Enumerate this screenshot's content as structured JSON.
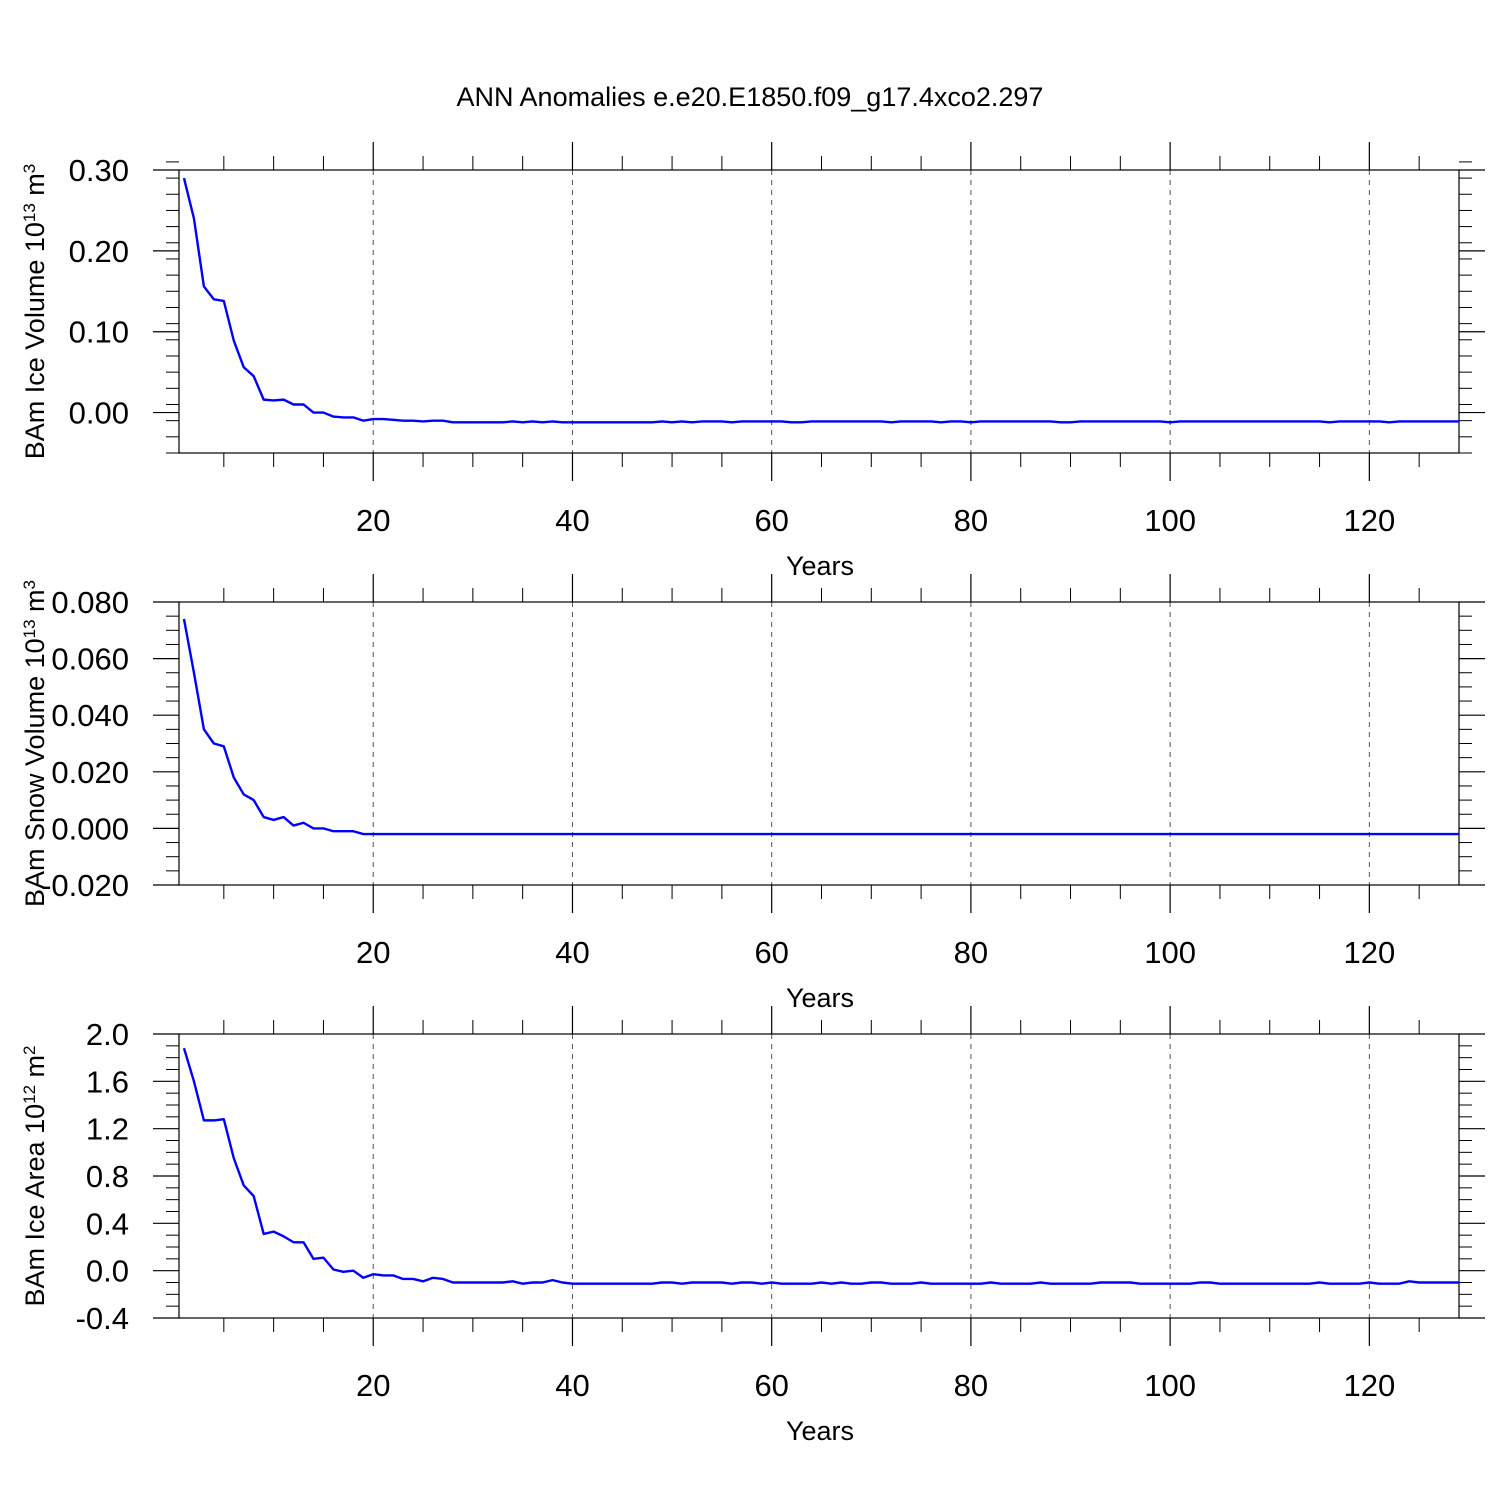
{
  "title": "ANN Anomalies e.e20.E1850.f09_g17.4xco2.297",
  "line_color": "#0000ff",
  "grid_color": "#555555",
  "chart_data": [
    {
      "type": "line",
      "ylabel": "BAm Ice Volume 10",
      "ylabel_exp": "13",
      "ylabel_unit": " m",
      "ylabel_unit_exp": "3",
      "xlabel": "Years",
      "xlim": [
        0.5,
        129
      ],
      "ylim": [
        -0.05,
        0.3
      ],
      "xticks": [
        20,
        40,
        60,
        80,
        100,
        120
      ],
      "xtick_labels": [
        "20",
        "40",
        "60",
        "80",
        "100",
        "120"
      ],
      "yticks": [
        0.0,
        0.1,
        0.2,
        0.3
      ],
      "ytick_labels": [
        "0.00",
        "0.10",
        "0.20",
        "0.30"
      ],
      "yminor_step": 0.02,
      "grid_x": true,
      "series": [
        {
          "x": [
            1,
            2,
            3,
            4,
            5,
            6,
            7,
            8,
            9,
            10,
            11,
            12,
            13,
            14,
            15,
            16,
            17,
            18,
            19,
            20,
            21,
            22,
            23,
            24,
            25,
            26,
            27,
            28,
            29,
            30,
            31,
            32,
            33,
            34,
            35,
            36,
            37,
            38,
            39,
            40,
            41,
            42,
            43,
            44,
            45,
            46,
            47,
            48,
            49,
            50,
            51,
            52,
            53,
            54,
            55,
            56,
            57,
            58,
            59,
            60,
            61,
            62,
            63,
            64,
            65,
            66,
            67,
            68,
            69,
            70,
            71,
            72,
            73,
            74,
            75,
            76,
            77,
            78,
            79,
            80,
            81,
            82,
            83,
            84,
            85,
            86,
            87,
            88,
            89,
            90,
            91,
            92,
            93,
            94,
            95,
            96,
            97,
            98,
            99,
            100,
            101,
            102,
            103,
            104,
            105,
            106,
            107,
            108,
            109,
            110,
            111,
            112,
            113,
            114,
            115,
            116,
            117,
            118,
            119,
            120,
            121,
            122,
            123,
            124,
            125,
            126,
            127,
            128,
            129
          ],
          "values": [
            0.29,
            0.24,
            0.156,
            0.14,
            0.138,
            0.089,
            0.056,
            0.045,
            0.016,
            0.015,
            0.016,
            0.01,
            0.01,
            0.0,
            0.0,
            -0.005,
            -0.006,
            -0.006,
            -0.01,
            -0.008,
            -0.008,
            -0.009,
            -0.01,
            -0.01,
            -0.011,
            -0.01,
            -0.01,
            -0.012,
            -0.012,
            -0.012,
            -0.012,
            -0.012,
            -0.012,
            -0.011,
            -0.012,
            -0.011,
            -0.012,
            -0.011,
            -0.012,
            -0.012,
            -0.012,
            -0.012,
            -0.012,
            -0.012,
            -0.012,
            -0.012,
            -0.012,
            -0.012,
            -0.011,
            -0.012,
            -0.011,
            -0.012,
            -0.011,
            -0.011,
            -0.011,
            -0.012,
            -0.011,
            -0.011,
            -0.011,
            -0.011,
            -0.011,
            -0.012,
            -0.012,
            -0.011,
            -0.011,
            -0.011,
            -0.011,
            -0.011,
            -0.011,
            -0.011,
            -0.011,
            -0.012,
            -0.011,
            -0.011,
            -0.011,
            -0.011,
            -0.012,
            -0.011,
            -0.011,
            -0.012,
            -0.011,
            -0.011,
            -0.011,
            -0.011,
            -0.011,
            -0.011,
            -0.011,
            -0.011,
            -0.012,
            -0.012,
            -0.011,
            -0.011,
            -0.011,
            -0.011,
            -0.011,
            -0.011,
            -0.011,
            -0.011,
            -0.011,
            -0.012,
            -0.011,
            -0.011,
            -0.011,
            -0.011,
            -0.011,
            -0.011,
            -0.011,
            -0.011,
            -0.011,
            -0.011,
            -0.011,
            -0.011,
            -0.011,
            -0.011,
            -0.011,
            -0.012,
            -0.011,
            -0.011,
            -0.011,
            -0.011,
            -0.011,
            -0.012,
            -0.011,
            -0.011,
            -0.011,
            -0.011,
            -0.011,
            -0.011,
            -0.011
          ]
        }
      ]
    },
    {
      "type": "line",
      "ylabel": "BAm Snow Volume 10",
      "ylabel_exp": "13",
      "ylabel_unit": " m",
      "ylabel_unit_exp": "3",
      "xlabel": "Years",
      "xlim": [
        0.5,
        129
      ],
      "ylim": [
        -0.02,
        0.08
      ],
      "xticks": [
        20,
        40,
        60,
        80,
        100,
        120
      ],
      "xtick_labels": [
        "20",
        "40",
        "60",
        "80",
        "100",
        "120"
      ],
      "yticks": [
        -0.02,
        0.0,
        0.02,
        0.04,
        0.06,
        0.08
      ],
      "ytick_labels": [
        "-0.020",
        "0.000",
        "0.020",
        "0.040",
        "0.060",
        "0.080"
      ],
      "yminor_step": 0.005,
      "grid_x": true,
      "series": [
        {
          "x": [
            1,
            2,
            3,
            4,
            5,
            6,
            7,
            8,
            9,
            10,
            11,
            12,
            13,
            14,
            15,
            16,
            17,
            18,
            19,
            20,
            21,
            22,
            23,
            24,
            25,
            26,
            27,
            28,
            29,
            30,
            31,
            32,
            33,
            34,
            35,
            36,
            37,
            38,
            39,
            40,
            41,
            42,
            43,
            44,
            45,
            46,
            47,
            48,
            49,
            50,
            51,
            52,
            53,
            54,
            55,
            56,
            57,
            58,
            59,
            60,
            61,
            62,
            63,
            64,
            65,
            66,
            67,
            68,
            69,
            70,
            71,
            72,
            73,
            74,
            75,
            76,
            77,
            78,
            79,
            80,
            81,
            82,
            83,
            84,
            85,
            86,
            87,
            88,
            89,
            90,
            91,
            92,
            93,
            94,
            95,
            96,
            97,
            98,
            99,
            100,
            101,
            102,
            103,
            104,
            105,
            106,
            107,
            108,
            109,
            110,
            111,
            112,
            113,
            114,
            115,
            116,
            117,
            118,
            119,
            120,
            121,
            122,
            123,
            124,
            125,
            126,
            127,
            128,
            129
          ],
          "values": [
            0.074,
            0.055,
            0.035,
            0.03,
            0.029,
            0.018,
            0.012,
            0.01,
            0.004,
            0.003,
            0.004,
            0.001,
            0.002,
            0.0,
            0.0,
            -0.001,
            -0.001,
            -0.001,
            -0.002,
            -0.002,
            -0.002,
            -0.002,
            -0.002,
            -0.002,
            -0.002,
            -0.002,
            -0.002,
            -0.002,
            -0.002,
            -0.002,
            -0.002,
            -0.002,
            -0.002,
            -0.002,
            -0.002,
            -0.002,
            -0.002,
            -0.002,
            -0.002,
            -0.002,
            -0.002,
            -0.002,
            -0.002,
            -0.002,
            -0.002,
            -0.002,
            -0.002,
            -0.002,
            -0.002,
            -0.002,
            -0.002,
            -0.002,
            -0.002,
            -0.002,
            -0.002,
            -0.002,
            -0.002,
            -0.002,
            -0.002,
            -0.002,
            -0.002,
            -0.002,
            -0.002,
            -0.002,
            -0.002,
            -0.002,
            -0.002,
            -0.002,
            -0.002,
            -0.002,
            -0.002,
            -0.002,
            -0.002,
            -0.002,
            -0.002,
            -0.002,
            -0.002,
            -0.002,
            -0.002,
            -0.002,
            -0.002,
            -0.002,
            -0.002,
            -0.002,
            -0.002,
            -0.002,
            -0.002,
            -0.002,
            -0.002,
            -0.002,
            -0.002,
            -0.002,
            -0.002,
            -0.002,
            -0.002,
            -0.002,
            -0.002,
            -0.002,
            -0.002,
            -0.002,
            -0.002,
            -0.002,
            -0.002,
            -0.002,
            -0.002,
            -0.002,
            -0.002,
            -0.002,
            -0.002,
            -0.002,
            -0.002,
            -0.002,
            -0.002,
            -0.002,
            -0.002,
            -0.002,
            -0.002,
            -0.002,
            -0.002,
            -0.002,
            -0.002,
            -0.002,
            -0.002,
            -0.002,
            -0.002,
            -0.002,
            -0.002,
            -0.002,
            -0.002
          ]
        }
      ]
    },
    {
      "type": "line",
      "ylabel": "BAm Ice Area 10",
      "ylabel_exp": "12",
      "ylabel_unit": " m",
      "ylabel_unit_exp": "2",
      "xlabel": "Years",
      "xlim": [
        0.5,
        129
      ],
      "ylim": [
        -0.4,
        2.0
      ],
      "xticks": [
        20,
        40,
        60,
        80,
        100,
        120
      ],
      "xtick_labels": [
        "20",
        "40",
        "60",
        "80",
        "100",
        "120"
      ],
      "yticks": [
        -0.4,
        0.0,
        0.4,
        0.8,
        1.2,
        1.6,
        2.0
      ],
      "ytick_labels": [
        "-0.4",
        "0.0",
        "0.4",
        "0.8",
        "1.2",
        "1.6",
        "2.0"
      ],
      "yminor_step": 0.1,
      "grid_x": true,
      "series": [
        {
          "x": [
            1,
            2,
            3,
            4,
            5,
            6,
            7,
            8,
            9,
            10,
            11,
            12,
            13,
            14,
            15,
            16,
            17,
            18,
            19,
            20,
            21,
            22,
            23,
            24,
            25,
            26,
            27,
            28,
            29,
            30,
            31,
            32,
            33,
            34,
            35,
            36,
            37,
            38,
            39,
            40,
            41,
            42,
            43,
            44,
            45,
            46,
            47,
            48,
            49,
            50,
            51,
            52,
            53,
            54,
            55,
            56,
            57,
            58,
            59,
            60,
            61,
            62,
            63,
            64,
            65,
            66,
            67,
            68,
            69,
            70,
            71,
            72,
            73,
            74,
            75,
            76,
            77,
            78,
            79,
            80,
            81,
            82,
            83,
            84,
            85,
            86,
            87,
            88,
            89,
            90,
            91,
            92,
            93,
            94,
            95,
            96,
            97,
            98,
            99,
            100,
            101,
            102,
            103,
            104,
            105,
            106,
            107,
            108,
            109,
            110,
            111,
            112,
            113,
            114,
            115,
            116,
            117,
            118,
            119,
            120,
            121,
            122,
            123,
            124,
            125,
            126,
            127,
            128,
            129
          ],
          "values": [
            1.88,
            1.6,
            1.27,
            1.27,
            1.28,
            0.95,
            0.72,
            0.63,
            0.31,
            0.33,
            0.29,
            0.24,
            0.24,
            0.1,
            0.11,
            0.01,
            -0.01,
            0.0,
            -0.06,
            -0.03,
            -0.04,
            -0.04,
            -0.07,
            -0.07,
            -0.09,
            -0.06,
            -0.07,
            -0.1,
            -0.1,
            -0.1,
            -0.1,
            -0.1,
            -0.1,
            -0.09,
            -0.11,
            -0.1,
            -0.1,
            -0.08,
            -0.1,
            -0.11,
            -0.11,
            -0.11,
            -0.11,
            -0.11,
            -0.11,
            -0.11,
            -0.11,
            -0.11,
            -0.1,
            -0.1,
            -0.11,
            -0.1,
            -0.1,
            -0.1,
            -0.1,
            -0.11,
            -0.1,
            -0.1,
            -0.11,
            -0.1,
            -0.11,
            -0.11,
            -0.11,
            -0.11,
            -0.1,
            -0.11,
            -0.1,
            -0.11,
            -0.11,
            -0.1,
            -0.1,
            -0.11,
            -0.11,
            -0.11,
            -0.1,
            -0.11,
            -0.11,
            -0.11,
            -0.11,
            -0.11,
            -0.11,
            -0.1,
            -0.11,
            -0.11,
            -0.11,
            -0.11,
            -0.1,
            -0.11,
            -0.11,
            -0.11,
            -0.11,
            -0.11,
            -0.1,
            -0.1,
            -0.1,
            -0.1,
            -0.11,
            -0.11,
            -0.11,
            -0.11,
            -0.11,
            -0.11,
            -0.1,
            -0.1,
            -0.11,
            -0.11,
            -0.11,
            -0.11,
            -0.11,
            -0.11,
            -0.11,
            -0.11,
            -0.11,
            -0.11,
            -0.1,
            -0.11,
            -0.11,
            -0.11,
            -0.11,
            -0.1,
            -0.11,
            -0.11,
            -0.11,
            -0.09,
            -0.1,
            -0.1,
            -0.1,
            -0.1,
            -0.1
          ]
        }
      ]
    }
  ]
}
